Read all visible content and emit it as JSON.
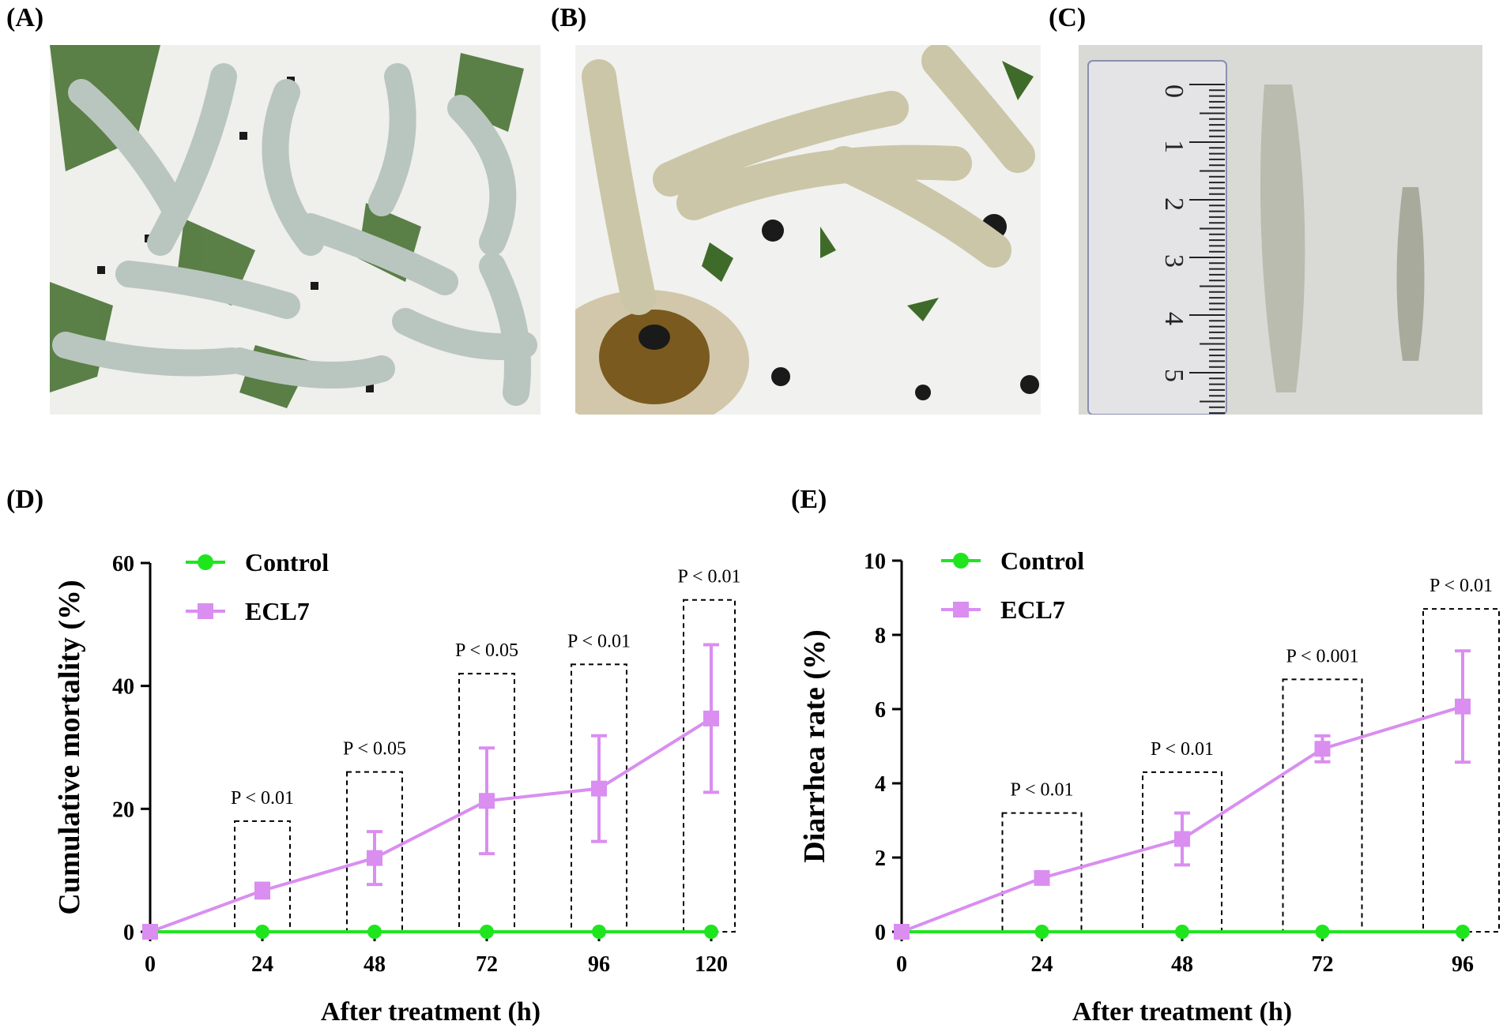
{
  "panels": {
    "a": "(A)",
    "b": "(B)",
    "c": "(C)",
    "d": "(D)",
    "e": "(E)"
  },
  "photo_c": {
    "ruler_numbers": [
      "0",
      "1",
      "2",
      "3",
      "4",
      "5"
    ]
  },
  "colors": {
    "control": "#1fe51f",
    "ecl7": "#d98ef0",
    "axis": "#000000"
  },
  "chart_data": [
    {
      "type": "line",
      "ylabel": "Cumulative mortality (%)",
      "xlabel": "After treatment (h)",
      "x": [
        0,
        24,
        48,
        72,
        96,
        120
      ],
      "x_tick_labels": [
        "0",
        "24",
        "48",
        "72",
        "96",
        "120"
      ],
      "y_ticks": [
        0,
        20,
        40,
        60
      ],
      "ylim": [
        0,
        60
      ],
      "legend_position": "top-left",
      "series": [
        {
          "name": "Control",
          "marker": "circle",
          "values": [
            0,
            0,
            0,
            0,
            0,
            0
          ]
        },
        {
          "name": "ECL7",
          "marker": "square",
          "values": [
            0,
            6.7,
            12.0,
            21.3,
            23.3,
            34.7
          ],
          "error": [
            0,
            1.2,
            4.3,
            8.6,
            8.6,
            12.0
          ]
        }
      ],
      "annotations": [
        {
          "x": 24,
          "text": "P < 0.01",
          "box_top": 18
        },
        {
          "x": 48,
          "text": "P < 0.05",
          "box_top": 26
        },
        {
          "x": 72,
          "text": "P < 0.05",
          "box_top": 42
        },
        {
          "x": 96,
          "text": "P < 0.01",
          "box_top": 43.5
        },
        {
          "x": 120,
          "text": "P < 0.01",
          "box_top": 54
        }
      ]
    },
    {
      "type": "line",
      "ylabel": "Diarrhea rate (%)",
      "xlabel": "After treatment (h)",
      "x": [
        0,
        24,
        48,
        72,
        96
      ],
      "x_tick_labels": [
        "0",
        "24",
        "48",
        "72",
        "96"
      ],
      "y_ticks": [
        0,
        2,
        4,
        6,
        8,
        10
      ],
      "ylim": [
        0,
        10
      ],
      "legend_position": "top-left",
      "series": [
        {
          "name": "Control",
          "marker": "circle",
          "values": [
            0,
            0,
            0,
            0,
            0
          ]
        },
        {
          "name": "ECL7",
          "marker": "square",
          "values": [
            0,
            1.45,
            2.5,
            4.93,
            6.07
          ],
          "error": [
            0,
            0.1,
            0.7,
            0.35,
            1.5
          ]
        }
      ],
      "annotations": [
        {
          "x": 24,
          "text": "P < 0.01",
          "box_top": 3.2
        },
        {
          "x": 48,
          "text": "P < 0.01",
          "box_top": 4.3
        },
        {
          "x": 72,
          "text": "P < 0.001",
          "box_top": 6.8
        },
        {
          "x": 96,
          "text": "P < 0.01",
          "box_top": 8.7
        }
      ]
    }
  ]
}
